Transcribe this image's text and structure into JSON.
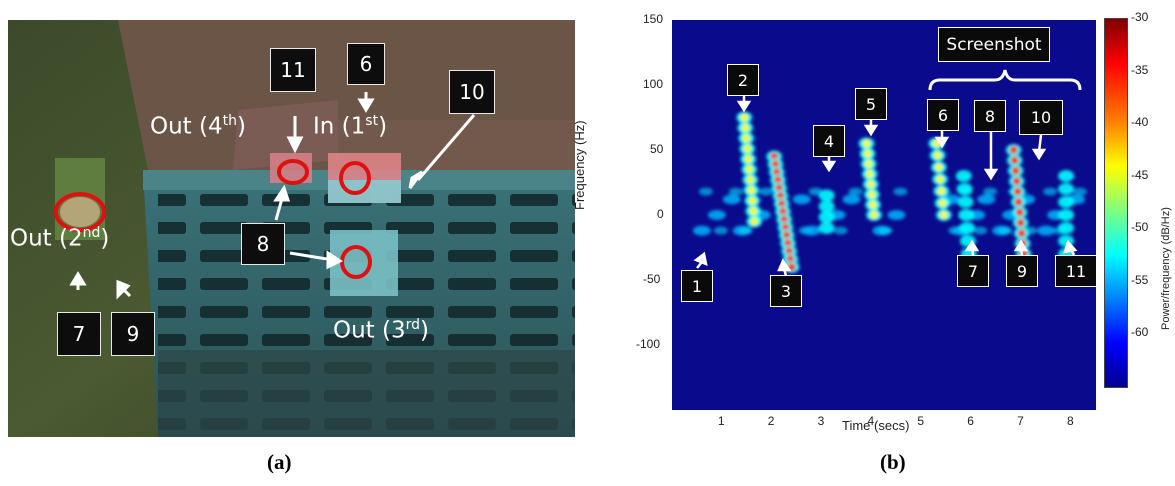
{
  "panel_a": {
    "caption": "(a)",
    "labels": {
      "out_4th_prefix": "Out (4",
      "out_4th_sup": "th",
      "out_4th_suffix": ")",
      "in_1st_prefix": "In (1",
      "in_1st_sup": "st",
      "in_1st_suffix": ")",
      "out_2nd_prefix": "Out (2",
      "out_2nd_sup": "nd",
      "out_2nd_suffix": ")",
      "out_3rd_prefix": "Out (3",
      "out_3rd_sup": "rd",
      "out_3rd_suffix": ")"
    },
    "boxes": {
      "b11": "11",
      "b6": "6",
      "b10": "10",
      "b8": "8",
      "b7": "7",
      "b9": "9"
    }
  },
  "panel_b": {
    "caption": "(b)",
    "xlabel": "Time (secs)",
    "ylabel": "Frequency (Hz)",
    "colorbar_label": "Power/frequency (dB/Hz)",
    "screenshot_label": "Screenshot",
    "x_ticks": [
      "1",
      "2",
      "3",
      "4",
      "5",
      "6",
      "7",
      "8"
    ],
    "y_ticks": [
      "150",
      "100",
      "50",
      "0",
      "-50",
      "-100"
    ],
    "cb_ticks": [
      "-30",
      "-35",
      "-40",
      "-45",
      "-50",
      "-55",
      "-60"
    ],
    "boxes": {
      "s1": "1",
      "s2": "2",
      "s3": "3",
      "s4": "4",
      "s5": "5",
      "s6": "6",
      "s7": "7",
      "s8": "8",
      "s9": "9",
      "s10": "10",
      "s11": "11"
    }
  },
  "chart_data": {
    "type": "heatmap",
    "xlabel": "Time (secs)",
    "ylabel": "Frequency (Hz)",
    "xlim": [
      0,
      8.5
    ],
    "ylim": [
      -150,
      150
    ],
    "colorbar_label": "Power/frequency (dB/Hz)",
    "colorbar_range": [
      -65,
      -30
    ],
    "events": [
      {
        "label": "1",
        "time": 1.0,
        "freq": -20
      },
      {
        "label": "2",
        "time": 1.5,
        "freq": 70
      },
      {
        "label": "3",
        "time": 2.3,
        "freq": -30
      },
      {
        "label": "4",
        "time": 3.1,
        "freq": 10
      },
      {
        "label": "5",
        "time": 3.95,
        "freq": 50
      },
      {
        "label": "6",
        "time": 5.35,
        "freq": 55
      },
      {
        "label": "7",
        "time": 5.9,
        "freq": -30
      },
      {
        "label": "8",
        "time": 6.4,
        "freq": 45
      },
      {
        "label": "9",
        "time": 7.0,
        "freq": -30
      },
      {
        "label": "10",
        "time": 7.3,
        "freq": 35
      },
      {
        "label": "11",
        "time": 7.9,
        "freq": -30
      }
    ]
  }
}
